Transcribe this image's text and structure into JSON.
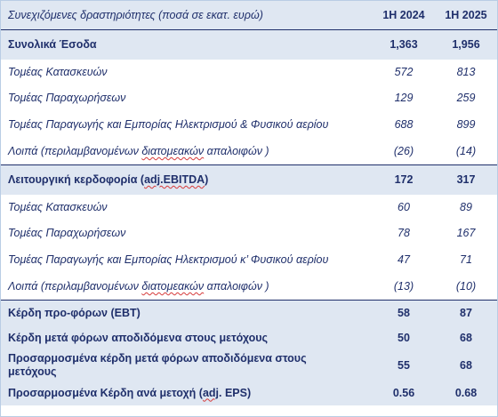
{
  "table": {
    "header": {
      "label": "Συνεχιζόμενες δραστηριότητες (ποσά σε εκατ. ευρώ)",
      "col1": "1Η 2024",
      "col2": "1Η 2025"
    },
    "rows": [
      {
        "label": "Συνολικά Έσοδα",
        "v1": "1,363",
        "v2": "1,956"
      },
      {
        "label": "Τομέας Κατασκευών",
        "v1": "572",
        "v2": "813"
      },
      {
        "label": "Τομέας Παραχωρήσεων",
        "v1": "129",
        "v2": "259"
      },
      {
        "label": "Τομέας Παραγωγής και Εμπορίας Ηλεκτρισμού & Φυσικού αερίου",
        "v1": "688",
        "v2": "899"
      },
      {
        "label_a": "Λοιπά (περιλαμβανομένων ",
        "label_b": "διατομεακών",
        "label_c": " απαλοιφών )",
        "v1": "(26)",
        "v2": "(14)"
      },
      {
        "label_a": "Λειτουργική κερδοφορία (",
        "label_b": "adj.EBITDA",
        "label_c": ")",
        "v1": "172",
        "v2": "317"
      },
      {
        "label": "Τομέας Κατασκευών",
        "v1": "60",
        "v2": "89"
      },
      {
        "label": "Τομέας Παραχωρήσεων",
        "v1": "78",
        "v2": "167"
      },
      {
        "label": "Τομέας Παραγωγής και Εμπορίας Ηλεκτρισμού κ’ Φυσικού αερίου",
        "v1": "47",
        "v2": "71"
      },
      {
        "label_a": "Λοιπά (περιλαμβανομένων ",
        "label_b": "διατομεακών",
        "label_c": " απαλοιφών )",
        "v1": "(13)",
        "v2": "(10)"
      },
      {
        "label": "Κέρδη προ-φόρων (EBT)",
        "v1": "58",
        "v2": "87"
      },
      {
        "label": "Κέρδη μετά φόρων αποδιδόμενα στους μετόχους",
        "v1": "50",
        "v2": "68"
      },
      {
        "label": "Προσαρμοσμένα κέρδη μετά φόρων αποδιδόμενα στους μετόχους",
        "v1": "55",
        "v2": "68"
      },
      {
        "label_a": "Προσαρμοσμένα Κέρδη ανά μετοχή (",
        "label_b": "adj",
        "label_c": ". EPS)",
        "v1": "0.56",
        "v2": "0.68"
      }
    ]
  }
}
